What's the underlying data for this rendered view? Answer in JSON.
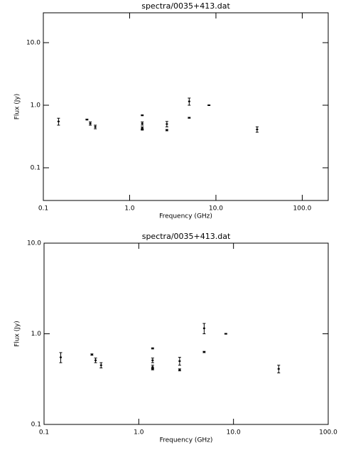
{
  "chart_data": [
    {
      "type": "scatter",
      "title": "spectra/0035+413.dat",
      "x_label": "Frequency (GHz)",
      "y_label": "Flux (Jy)",
      "x_log": true,
      "y_log": true,
      "color": "#000000",
      "x": [
        0.15,
        0.32,
        0.35,
        0.4,
        1.4,
        1.4,
        1.4,
        1.4,
        2.7,
        2.7,
        4.9,
        4.9,
        8.3,
        30
      ],
      "values": [
        0.55,
        0.59,
        0.51,
        0.45,
        0.69,
        0.51,
        0.43,
        0.41,
        0.5,
        0.4,
        1.15,
        0.63,
        1.0,
        0.41
      ],
      "errors": [
        0.07,
        0.01,
        0.03,
        0.03,
        0.01,
        0.03,
        0.02,
        0.01,
        0.05,
        0.01,
        0.15,
        0.01,
        0.01,
        0.04
      ],
      "xlim": [
        0.1,
        200
      ],
      "ylim": [
        0.03,
        30
      ],
      "xticks": [
        0.1,
        {
          "value": 1,
          "label": "1.0"
        },
        {
          "value": 10,
          "label": "10.0"
        },
        {
          "value": 100,
          "label": "100.0"
        }
      ],
      "yticks": [
        0.1,
        {
          "value": 1,
          "label": "1.0"
        },
        {
          "value": 10,
          "label": "10.0"
        }
      ]
    },
    {
      "type": "scatter",
      "title": "spectra/0035+413.dat",
      "x_label": "Frequency (GHz)",
      "y_label": "Flux (Jy)",
      "x_log": true,
      "y_log": true,
      "color": "#000000",
      "x": [
        0.15,
        0.32,
        0.35,
        0.4,
        1.4,
        1.4,
        1.4,
        1.4,
        2.7,
        2.7,
        4.9,
        4.9,
        8.3,
        30
      ],
      "values": [
        0.55,
        0.59,
        0.51,
        0.45,
        0.69,
        0.51,
        0.43,
        0.41,
        0.5,
        0.4,
        1.15,
        0.63,
        1.0,
        0.41
      ],
      "errors": [
        0.07,
        0.01,
        0.03,
        0.03,
        0.01,
        0.03,
        0.02,
        0.01,
        0.05,
        0.01,
        0.15,
        0.01,
        0.01,
        0.04
      ],
      "xlim": [
        0.1,
        100
      ],
      "ylim": [
        0.1,
        10
      ],
      "xticks": [
        0.1,
        {
          "value": 1,
          "label": "1.0"
        },
        {
          "value": 10,
          "label": "10.0"
        },
        {
          "value": 100,
          "label": "100.0"
        }
      ],
      "yticks": [
        0.1,
        {
          "value": 1,
          "label": "1.0"
        },
        {
          "value": 10,
          "label": "10.0"
        }
      ]
    }
  ]
}
